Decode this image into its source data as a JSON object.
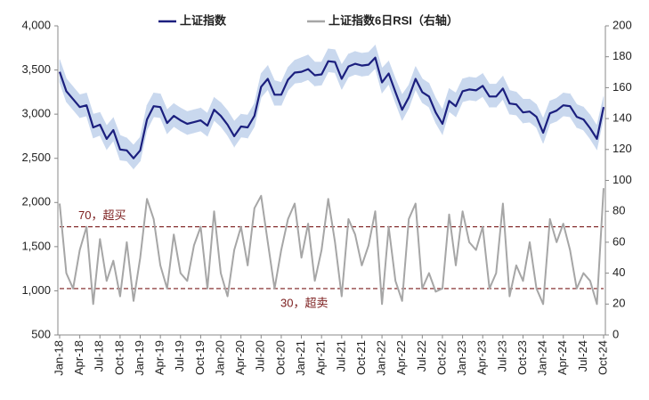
{
  "chart_data": {
    "type": "line",
    "categories": [
      "Jan-18",
      null,
      null,
      "Apr-18",
      null,
      null,
      "Jul-18",
      null,
      null,
      "Oct-18",
      null,
      null,
      "Jan-19",
      null,
      null,
      "Apr-19",
      null,
      null,
      "Jul-19",
      null,
      null,
      "Oct-19",
      null,
      null,
      "Jan-20",
      null,
      null,
      "Apr-20",
      null,
      null,
      "Jul-20",
      null,
      null,
      "Oct-20",
      null,
      null,
      "Jan-21",
      null,
      null,
      "Apr-21",
      null,
      null,
      "Jul-21",
      null,
      null,
      "Oct-21",
      null,
      null,
      "Jan-22",
      null,
      null,
      "Apr-22",
      null,
      null,
      "Jul-22",
      null,
      null,
      "Oct-22",
      null,
      null,
      "Jan-23",
      null,
      null,
      "Apr-23",
      null,
      null,
      "Jul-23",
      null,
      null,
      "Oct-23",
      null,
      null,
      "Jan-24",
      null,
      null,
      "Apr-24",
      null,
      null,
      "Jul-24",
      null,
      null,
      "Oct-24"
    ],
    "series": [
      {
        "name": "上证指数",
        "color": "#1b1f7e",
        "values": [
          3480,
          3260,
          3170,
          3080,
          3100,
          2850,
          2880,
          2720,
          2820,
          2600,
          2590,
          2500,
          2590,
          2940,
          3090,
          3080,
          2900,
          2980,
          2930,
          2890,
          2910,
          2930,
          2870,
          3050,
          2980,
          2880,
          2750,
          2860,
          2850,
          2980,
          3310,
          3400,
          3220,
          3220,
          3390,
          3470,
          3480,
          3510,
          3440,
          3450,
          3600,
          3590,
          3400,
          3540,
          3570,
          3550,
          3560,
          3640,
          3360,
          3460,
          3250,
          3050,
          3190,
          3400,
          3250,
          3200,
          3020,
          2890,
          3150,
          3090,
          3260,
          3280,
          3270,
          3320,
          3200,
          3200,
          3290,
          3120,
          3110,
          3020,
          3030,
          2970,
          2790,
          3010,
          3040,
          3100,
          3090,
          2970,
          2940,
          2840,
          2720,
          3080
        ]
      },
      {
        "name": "上证指数6日RSI（右轴）",
        "color": "#a6a6a6",
        "axis": "y2",
        "values": [
          85,
          40,
          30,
          55,
          70,
          20,
          62,
          35,
          48,
          25,
          60,
          22,
          50,
          88,
          75,
          45,
          30,
          65,
          40,
          35,
          58,
          70,
          30,
          80,
          40,
          25,
          55,
          70,
          45,
          82,
          90,
          60,
          30,
          55,
          75,
          85,
          50,
          72,
          35,
          55,
          88,
          60,
          25,
          75,
          65,
          45,
          58,
          80,
          20,
          70,
          35,
          22,
          75,
          85,
          30,
          40,
          28,
          30,
          78,
          45,
          80,
          60,
          55,
          70,
          30,
          40,
          85,
          25,
          45,
          35,
          60,
          30,
          20,
          75,
          60,
          72,
          55,
          30,
          40,
          35,
          20,
          95
        ]
      }
    ],
    "band": {
      "color": "#c9d8ee",
      "upper": [
        3620,
        3400,
        3310,
        3220,
        3240,
        3000,
        3020,
        2870,
        2960,
        2760,
        2730,
        2650,
        2740,
        3100,
        3240,
        3230,
        3050,
        3120,
        3070,
        3030,
        3050,
        3070,
        3010,
        3190,
        3130,
        3040,
        2920,
        3000,
        2990,
        3120,
        3460,
        3550,
        3380,
        3360,
        3530,
        3610,
        3640,
        3670,
        3590,
        3590,
        3740,
        3730,
        3560,
        3680,
        3710,
        3690,
        3700,
        3780,
        3520,
        3600,
        3400,
        3220,
        3330,
        3540,
        3400,
        3350,
        3180,
        3050,
        3290,
        3240,
        3400,
        3420,
        3410,
        3460,
        3340,
        3340,
        3430,
        3270,
        3250,
        3170,
        3170,
        3110,
        2950,
        3150,
        3180,
        3240,
        3230,
        3110,
        3080,
        2990,
        2870,
        3200
      ],
      "lower": [
        3360,
        3140,
        3050,
        2960,
        2980,
        2730,
        2760,
        2600,
        2700,
        2480,
        2470,
        2380,
        2470,
        2820,
        2970,
        2960,
        2780,
        2860,
        2810,
        2770,
        2790,
        2810,
        2750,
        2930,
        2860,
        2760,
        2630,
        2740,
        2730,
        2860,
        3190,
        3280,
        3100,
        3100,
        3270,
        3350,
        3360,
        3390,
        3320,
        3330,
        3480,
        3470,
        3280,
        3420,
        3450,
        3430,
        3440,
        3520,
        3240,
        3340,
        3130,
        2930,
        3070,
        3280,
        3130,
        3080,
        2900,
        2770,
        3030,
        2970,
        3140,
        3160,
        3150,
        3200,
        3080,
        3080,
        3170,
        3000,
        2990,
        2900,
        2910,
        2850,
        2670,
        2890,
        2920,
        2980,
        2970,
        2850,
        2820,
        2720,
        2600,
        2960
      ]
    },
    "reference_lines": [
      {
        "value": 70,
        "label": "70，超买"
      },
      {
        "value": 30,
        "label": "30，超卖"
      }
    ],
    "reference_color": "#7b1c1c",
    "ylim": [
      500,
      4000
    ],
    "yticks": [
      500,
      {
        "value": 1000,
        "label": "1,000"
      },
      {
        "value": 1500,
        "label": "1,500"
      },
      {
        "value": 2000,
        "label": "2,000"
      },
      {
        "value": 2500,
        "label": "2,500"
      },
      {
        "value": 3000,
        "label": "3,000"
      },
      {
        "value": 3500,
        "label": "3,500"
      },
      {
        "value": 4000,
        "label": "4,000"
      }
    ],
    "y2lim": [
      0,
      200
    ],
    "y2ticks": [
      0,
      20,
      40,
      60,
      80,
      100,
      120,
      140,
      160,
      180,
      200
    ],
    "legend": "top"
  }
}
